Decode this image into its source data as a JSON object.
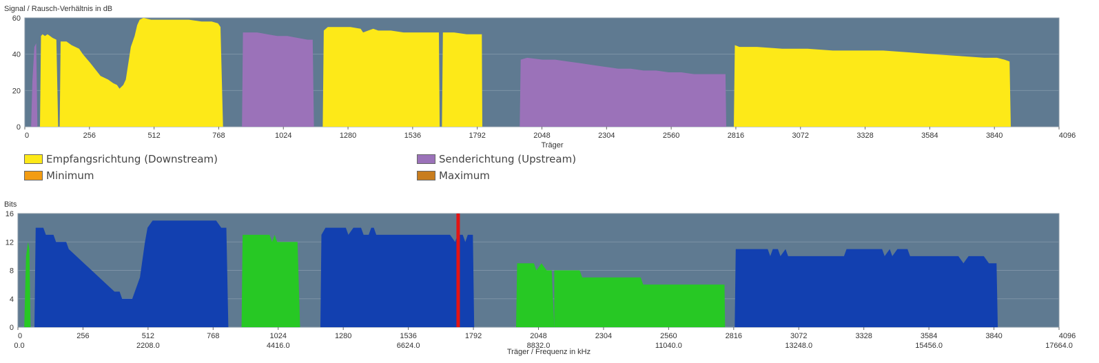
{
  "chart_data": [
    {
      "type": "area",
      "ylabel": "Signal / Rausch-Verhältnis in dB",
      "xlabel": "Träger",
      "xlim": [
        0,
        4096
      ],
      "ylim": [
        0,
        60
      ],
      "yticks": [
        0,
        20,
        40,
        60
      ],
      "xticks": [
        0,
        256,
        512,
        768,
        1024,
        1280,
        1536,
        1792,
        2048,
        2304,
        2560,
        2816,
        3072,
        3328,
        3584,
        3840,
        4096
      ],
      "grid": true,
      "colors": {
        "plot_bg": "#5f7a91",
        "downstream": "#fde918",
        "upstream": "#9b72b9"
      },
      "series": [
        {
          "name": "Senderichtung (Upstream)",
          "color": "#9b72b9",
          "points": [
            [
              25,
              0
            ],
            [
              30,
              25
            ],
            [
              38,
              44
            ],
            [
              45,
              46
            ],
            [
              50,
              0
            ]
          ]
        },
        {
          "name": "Empfangsrichtung (Downstream)",
          "color": "#fde918",
          "points": [
            [
              60,
              0
            ],
            [
              64,
              50
            ],
            [
              70,
              51
            ],
            [
              80,
              50
            ],
            [
              90,
              51
            ],
            [
              100,
              50
            ],
            [
              110,
              49
            ],
            [
              125,
              48
            ],
            [
              132,
              0
            ]
          ]
        },
        {
          "name": "Empfangsrichtung (Downstream)",
          "color": "#fde918",
          "points": [
            [
              138,
              0
            ],
            [
              142,
              47
            ],
            [
              165,
              47
            ],
            [
              185,
              45
            ],
            [
              200,
              44
            ],
            [
              215,
              43
            ],
            [
              230,
              40
            ],
            [
              260,
              35
            ],
            [
              300,
              28
            ],
            [
              330,
              26
            ],
            [
              350,
              24
            ],
            [
              365,
              23
            ],
            [
              375,
              21
            ],
            [
              390,
              23
            ],
            [
              400,
              26
            ],
            [
              420,
              44
            ],
            [
              435,
              50
            ],
            [
              445,
              56
            ],
            [
              455,
              59
            ],
            [
              470,
              60
            ],
            [
              500,
              59
            ],
            [
              550,
              59
            ],
            [
              600,
              59
            ],
            [
              650,
              59
            ],
            [
              700,
              58
            ],
            [
              740,
              58
            ],
            [
              765,
              57
            ],
            [
              770,
              56
            ],
            [
              775,
              55
            ],
            [
              785,
              0
            ]
          ]
        },
        {
          "name": "Senderichtung (Upstream)",
          "color": "#9b72b9",
          "points": [
            [
              860,
              0
            ],
            [
              864,
              52
            ],
            [
              880,
              52
            ],
            [
              920,
              52
            ],
            [
              960,
              51
            ],
            [
              1000,
              50
            ],
            [
              1040,
              50
            ],
            [
              1080,
              49
            ],
            [
              1120,
              48
            ],
            [
              1140,
              48
            ],
            [
              1145,
              0
            ]
          ]
        },
        {
          "name": "Empfangsrichtung (Downstream)",
          "color": "#fde918",
          "points": [
            [
              1180,
              0
            ],
            [
              1184,
              53
            ],
            [
              1200,
              55
            ],
            [
              1240,
              55
            ],
            [
              1290,
              55
            ],
            [
              1330,
              54
            ],
            [
              1340,
              52
            ],
            [
              1360,
              53
            ],
            [
              1380,
              54
            ],
            [
              1400,
              53
            ],
            [
              1450,
              53
            ],
            [
              1500,
              52
            ],
            [
              1550,
              52
            ],
            [
              1600,
              52
            ],
            [
              1640,
              52
            ],
            [
              1643,
              0
            ]
          ]
        },
        {
          "name": "Empfangsrichtung (Downstream)",
          "color": "#fde918",
          "points": [
            [
              1652,
              0
            ],
            [
              1656,
              52
            ],
            [
              1700,
              52
            ],
            [
              1750,
              51
            ],
            [
              1790,
              51
            ],
            [
              1810,
              51
            ],
            [
              1812,
              0
            ]
          ]
        },
        {
          "name": "Senderichtung (Upstream)",
          "color": "#9b72b9",
          "points": [
            [
              1960,
              0
            ],
            [
              1964,
              37
            ],
            [
              1990,
              38
            ],
            [
              2050,
              37
            ],
            [
              2100,
              37
            ],
            [
              2150,
              36
            ],
            [
              2200,
              35
            ],
            [
              2250,
              34
            ],
            [
              2300,
              33
            ],
            [
              2350,
              32
            ],
            [
              2400,
              32
            ],
            [
              2450,
              31
            ],
            [
              2500,
              31
            ],
            [
              2550,
              30
            ],
            [
              2600,
              30
            ],
            [
              2650,
              29
            ],
            [
              2700,
              29
            ],
            [
              2775,
              29
            ],
            [
              2778,
              0
            ]
          ]
        },
        {
          "name": "Empfangsrichtung (Downstream)",
          "color": "#fde918",
          "points": [
            [
              2808,
              0
            ],
            [
              2812,
              45
            ],
            [
              2830,
              44
            ],
            [
              2900,
              44
            ],
            [
              3000,
              43
            ],
            [
              3100,
              43
            ],
            [
              3200,
              42
            ],
            [
              3300,
              42
            ],
            [
              3400,
              42
            ],
            [
              3500,
              41
            ],
            [
              3600,
              40
            ],
            [
              3700,
              39
            ],
            [
              3800,
              38
            ],
            [
              3850,
              38
            ],
            [
              3880,
              37
            ],
            [
              3900,
              36
            ],
            [
              3905,
              0
            ]
          ]
        }
      ]
    },
    {
      "type": "area",
      "ylabel": "Bits",
      "xlabel": "Träger / Frequenz in kHz",
      "xlim": [
        0,
        4096
      ],
      "ylim": [
        0,
        16
      ],
      "yticks": [
        0,
        4,
        8,
        12,
        16
      ],
      "xticks": [
        0,
        256,
        512,
        768,
        1024,
        1280,
        1536,
        1792,
        2048,
        2304,
        2560,
        2816,
        3072,
        3328,
        3584,
        3840,
        4096
      ],
      "xticks_khz": [
        "0.0",
        "2208.0",
        "4416.0",
        "6624.0",
        "8832.0",
        "11040.0",
        "13248.0",
        "15456.0",
        "17664.0"
      ],
      "grid": true,
      "marker_carrier": 1732,
      "colors": {
        "plot_bg": "#5f7a91",
        "downstream": "#1240b0",
        "upstream": "#27c824",
        "marker": "#e31414"
      },
      "series": [
        {
          "name": "upstream",
          "color": "#27c824",
          "points": [
            [
              25,
              0
            ],
            [
              32,
              10
            ],
            [
              40,
              12
            ],
            [
              45,
              11
            ],
            [
              50,
              0
            ]
          ]
        },
        {
          "name": "downstream",
          "color": "#1240b0",
          "points": [
            [
              65,
              0
            ],
            [
              70,
              14
            ],
            [
              100,
              14
            ],
            [
              110,
              13
            ],
            [
              140,
              13
            ],
            [
              150,
              12
            ],
            [
              190,
              12
            ],
            [
              200,
              11
            ],
            [
              230,
              10
            ],
            [
              260,
              9
            ],
            [
              290,
              8
            ],
            [
              320,
              7
            ],
            [
              350,
              6
            ],
            [
              380,
              5
            ],
            [
              400,
              5
            ],
            [
              410,
              4
            ],
            [
              450,
              4
            ],
            [
              460,
              5
            ],
            [
              480,
              7
            ],
            [
              500,
              12
            ],
            [
              510,
              14
            ],
            [
              530,
              15
            ],
            [
              580,
              15
            ],
            [
              700,
              15
            ],
            [
              780,
              15
            ],
            [
              800,
              14
            ],
            [
              820,
              14
            ],
            [
              828,
              0
            ]
          ]
        },
        {
          "name": "upstream",
          "color": "#27c824",
          "points": [
            [
              880,
              0
            ],
            [
              884,
              13
            ],
            [
              990,
              13
            ],
            [
              1000,
              12
            ],
            [
              1010,
              13
            ],
            [
              1020,
              12
            ],
            [
              1100,
              12
            ],
            [
              1110,
              0
            ]
          ]
        },
        {
          "name": "downstream",
          "color": "#1240b0",
          "points": [
            [
              1190,
              0
            ],
            [
              1194,
              13
            ],
            [
              1210,
              14
            ],
            [
              1290,
              14
            ],
            [
              1300,
              13
            ],
            [
              1320,
              14
            ],
            [
              1350,
              14
            ],
            [
              1360,
              13
            ],
            [
              1380,
              13
            ],
            [
              1390,
              14
            ],
            [
              1400,
              14
            ],
            [
              1410,
              13
            ],
            [
              1600,
              13
            ],
            [
              1700,
              13
            ],
            [
              1720,
              12
            ],
            [
              1730,
              13
            ],
            [
              1750,
              13
            ],
            [
              1760,
              12
            ],
            [
              1770,
              13
            ],
            [
              1790,
              13
            ],
            [
              1795,
              0
            ]
          ]
        },
        {
          "name": "upstream",
          "color": "#27c824",
          "points": [
            [
              1960,
              0
            ],
            [
              1964,
              9
            ],
            [
              2030,
              9
            ],
            [
              2040,
              8
            ],
            [
              2060,
              9
            ],
            [
              2080,
              8
            ],
            [
              2100,
              8
            ],
            [
              2110,
              0
            ]
          ]
        },
        {
          "name": "upstream",
          "color": "#27c824",
          "points": [
            [
              2110,
              0
            ],
            [
              2110,
              8
            ],
            [
              2210,
              8
            ],
            [
              2220,
              7
            ],
            [
              2450,
              7
            ],
            [
              2460,
              6
            ],
            [
              2780,
              6
            ],
            [
              2782,
              0
            ]
          ]
        },
        {
          "name": "downstream",
          "color": "#1240b0",
          "points": [
            [
              2820,
              0
            ],
            [
              2824,
              11
            ],
            [
              2900,
              11
            ],
            [
              2950,
              11
            ],
            [
              2960,
              10
            ],
            [
              2970,
              11
            ],
            [
              2990,
              11
            ],
            [
              3000,
              10
            ],
            [
              3020,
              11
            ],
            [
              3030,
              10
            ],
            [
              3050,
              10
            ],
            [
              3080,
              10
            ],
            [
              3200,
              10
            ],
            [
              3250,
              10
            ],
            [
              3260,
              11
            ],
            [
              3400,
              11
            ],
            [
              3410,
              10
            ],
            [
              3430,
              11
            ],
            [
              3440,
              10
            ],
            [
              3460,
              11
            ],
            [
              3500,
              11
            ],
            [
              3510,
              10
            ],
            [
              3560,
              10
            ],
            [
              3600,
              10
            ],
            [
              3700,
              10
            ],
            [
              3720,
              9
            ],
            [
              3740,
              10
            ],
            [
              3800,
              10
            ],
            [
              3820,
              9
            ],
            [
              3850,
              9
            ],
            [
              3855,
              0
            ]
          ]
        }
      ]
    }
  ],
  "legend": {
    "downstream": {
      "label": "Empfangsrichtung (Downstream)",
      "color": "#fde918"
    },
    "upstream": {
      "label": "Senderichtung (Upstream)",
      "color": "#9b72b9"
    },
    "minimum": {
      "label": "Minimum",
      "color": "#f39c12"
    },
    "maximum": {
      "label": "Maximum",
      "color": "#c87d1e"
    }
  }
}
